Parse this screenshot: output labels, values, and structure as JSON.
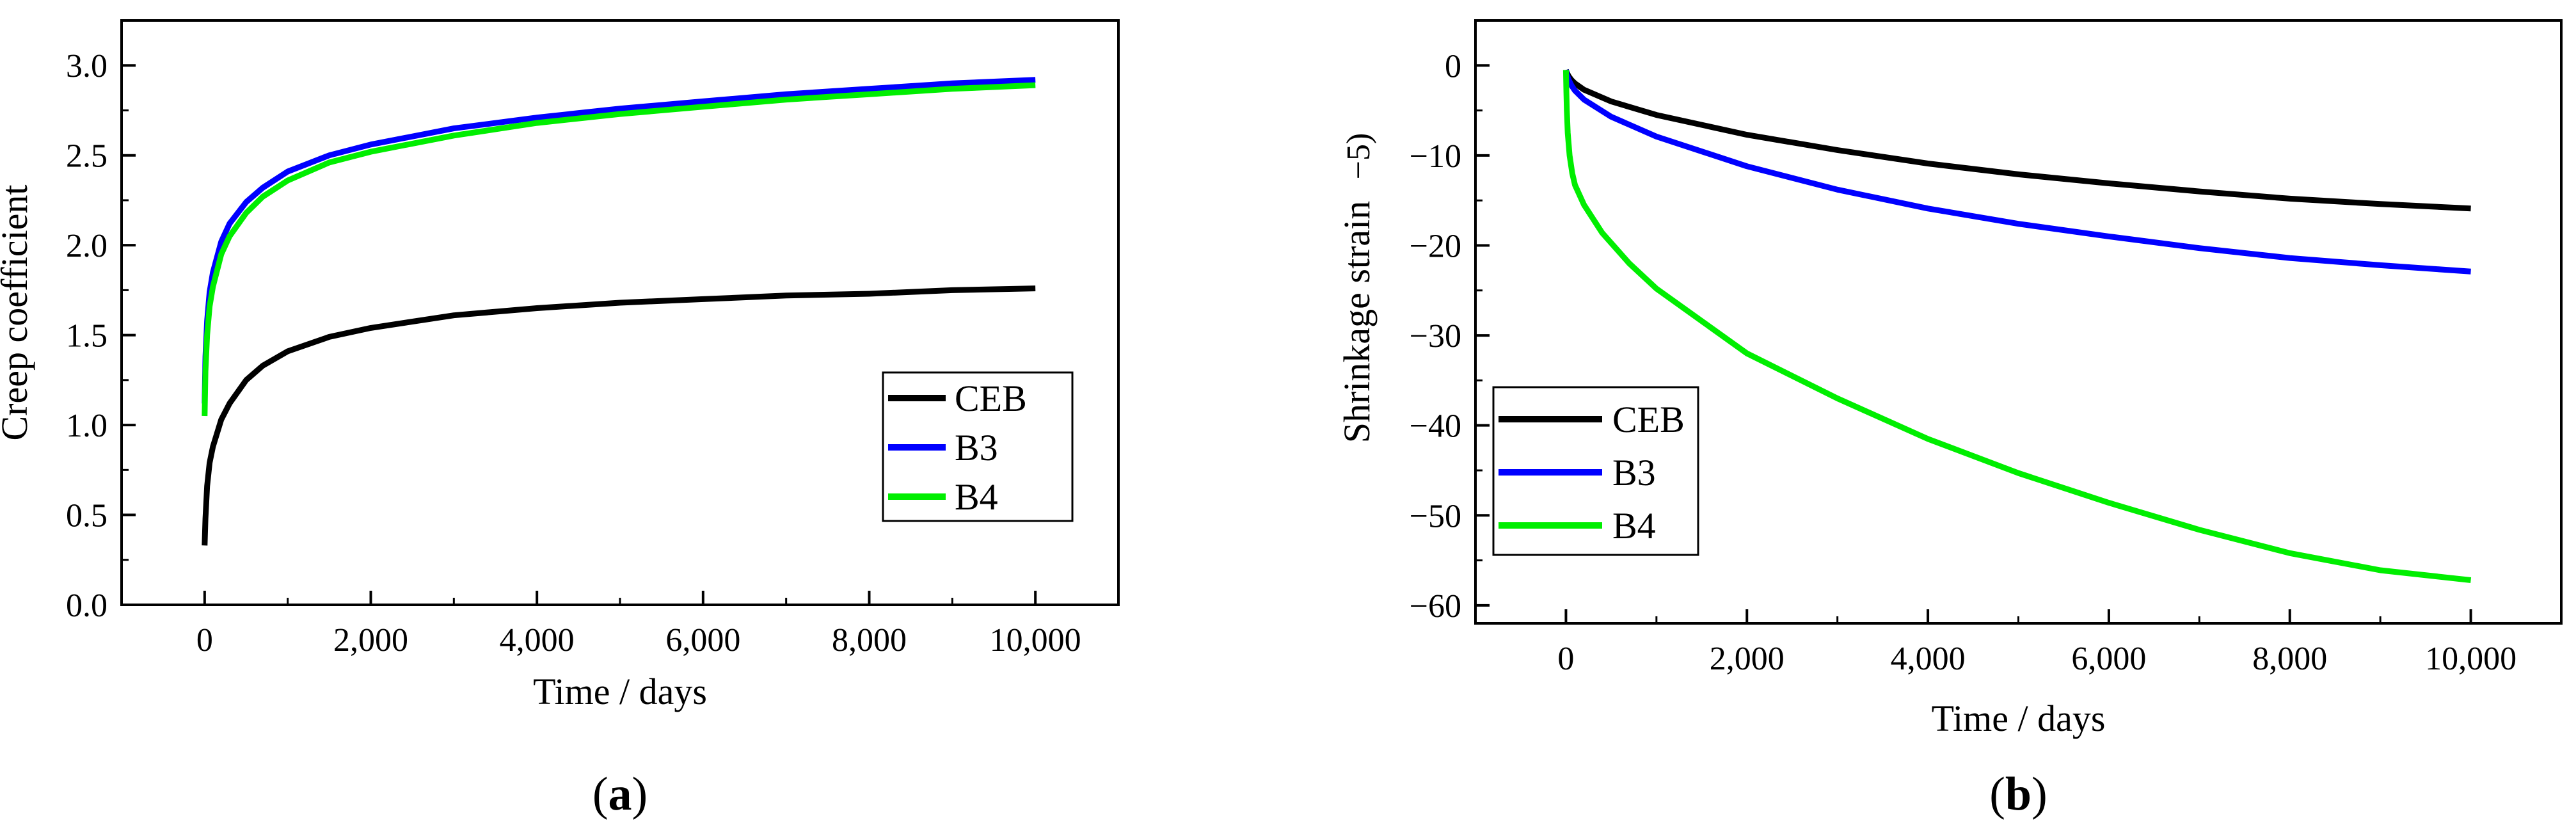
{
  "chart_data": [
    {
      "id": "a",
      "type": "line",
      "panel_label": "a",
      "panel_label_open": "(",
      "panel_label_close": ")",
      "xlabel": "Time / days",
      "ylabel": "Creep coefficient",
      "xlim": [
        -1000,
        11000
      ],
      "ylim": [
        0,
        3.25
      ],
      "x_ticks": [
        0,
        2000,
        4000,
        6000,
        8000,
        10000
      ],
      "x_tick_labels": [
        "0",
        "2,000",
        "4,000",
        "6,000",
        "8,000",
        "10,000"
      ],
      "y_ticks": [
        0,
        0.5,
        1.0,
        1.5,
        2.0,
        2.5,
        3.0
      ],
      "y_tick_labels": [
        "0.0",
        "0.5",
        "1.0",
        "1.5",
        "2.0",
        "2.5",
        "3.0"
      ],
      "legend_position": "center-right",
      "series": [
        {
          "name": "CEB",
          "color": "#000000",
          "x": [
            0,
            10,
            30,
            60,
            100,
            200,
            300,
            500,
            700,
            1000,
            1500,
            2000,
            3000,
            4000,
            5000,
            6000,
            7000,
            8000,
            9000,
            10000
          ],
          "y": [
            0.33,
            0.48,
            0.66,
            0.79,
            0.88,
            1.03,
            1.12,
            1.25,
            1.33,
            1.41,
            1.49,
            1.54,
            1.61,
            1.65,
            1.68,
            1.7,
            1.72,
            1.73,
            1.75,
            1.76
          ]
        },
        {
          "name": "B3",
          "color": "#0000ff",
          "x": [
            0,
            10,
            30,
            60,
            100,
            200,
            300,
            500,
            700,
            1000,
            1500,
            2000,
            3000,
            4000,
            5000,
            6000,
            7000,
            8000,
            9000,
            10000
          ],
          "y": [
            1.12,
            1.38,
            1.58,
            1.74,
            1.85,
            2.02,
            2.12,
            2.24,
            2.32,
            2.41,
            2.5,
            2.56,
            2.65,
            2.71,
            2.76,
            2.8,
            2.84,
            2.87,
            2.9,
            2.92
          ]
        },
        {
          "name": "B4",
          "color": "#00ee00",
          "x": [
            0,
            10,
            30,
            60,
            100,
            200,
            300,
            500,
            700,
            1000,
            1500,
            2000,
            3000,
            4000,
            5000,
            6000,
            7000,
            8000,
            9000,
            10000
          ],
          "y": [
            1.05,
            1.3,
            1.5,
            1.66,
            1.77,
            1.95,
            2.05,
            2.18,
            2.27,
            2.36,
            2.46,
            2.52,
            2.61,
            2.68,
            2.73,
            2.77,
            2.81,
            2.84,
            2.87,
            2.89
          ]
        }
      ]
    },
    {
      "id": "b",
      "type": "line",
      "panel_label": "b",
      "panel_label_open": "(",
      "panel_label_close": ")",
      "xlabel": "Time / days",
      "ylabel": "Shrinkage strain",
      "ylabel_fragment": "−5)",
      "xlim": [
        -1000,
        11000
      ],
      "ylim": [
        -62,
        5
      ],
      "x_ticks": [
        0,
        2000,
        4000,
        6000,
        8000,
        10000
      ],
      "x_tick_labels": [
        "0",
        "2,000",
        "4,000",
        "6,000",
        "8,000",
        "10,000"
      ],
      "y_ticks": [
        0,
        -10,
        -20,
        -30,
        -40,
        -50,
        -60
      ],
      "y_tick_labels": [
        "0",
        "−10",
        "−20",
        "−30",
        "−40",
        "−50",
        "−60"
      ],
      "legend_position": "center-left",
      "series": [
        {
          "name": "CEB",
          "color": "#000000",
          "x": [
            0,
            10,
            30,
            60,
            100,
            200,
            500,
            1000,
            2000,
            3000,
            4000,
            5000,
            6000,
            7000,
            8000,
            9000,
            10000
          ],
          "y": [
            -0.5,
            -0.8,
            -1.2,
            -1.6,
            -2.0,
            -2.7,
            -4.0,
            -5.5,
            -7.7,
            -9.4,
            -10.9,
            -12.1,
            -13.1,
            -14.0,
            -14.8,
            -15.4,
            -15.9
          ]
        },
        {
          "name": "B3",
          "color": "#0000ff",
          "x": [
            0,
            10,
            30,
            60,
            100,
            200,
            500,
            1000,
            2000,
            3000,
            4000,
            5000,
            6000,
            7000,
            8000,
            9000,
            10000
          ],
          "y": [
            -0.5,
            -1.0,
            -1.6,
            -2.2,
            -2.8,
            -3.8,
            -5.7,
            -7.9,
            -11.2,
            -13.8,
            -15.9,
            -17.6,
            -19.0,
            -20.3,
            -21.4,
            -22.2,
            -22.9
          ]
        },
        {
          "name": "B4",
          "color": "#00ee00",
          "x": [
            0,
            5,
            10,
            20,
            40,
            70,
            100,
            200,
            400,
            700,
            1000,
            2000,
            3000,
            4000,
            5000,
            6000,
            7000,
            8000,
            9000,
            10000
          ],
          "y": [
            -0.5,
            -3.0,
            -5.0,
            -7.5,
            -10.0,
            -12.0,
            -13.3,
            -15.5,
            -18.6,
            -22.0,
            -24.8,
            -32.0,
            -37.0,
            -41.5,
            -45.3,
            -48.6,
            -51.6,
            -54.2,
            -56.1,
            -57.2
          ]
        }
      ]
    }
  ]
}
